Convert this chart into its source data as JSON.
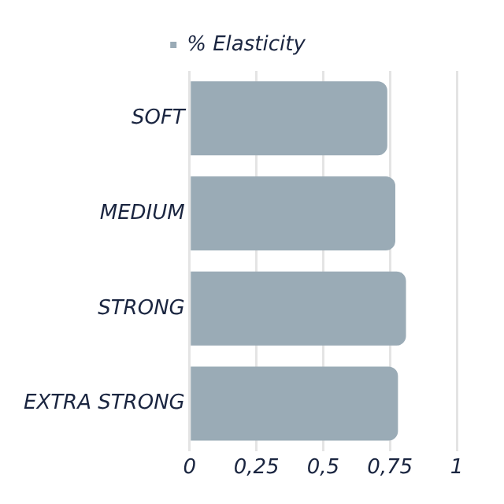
{
  "chart_data": {
    "type": "bar",
    "orientation": "horizontal",
    "categories": [
      "SOFT",
      "MEDIUM",
      "STRONG",
      "EXTRA STRONG"
    ],
    "series": [
      {
        "name": "% Elasticity",
        "color": "#9aabb6",
        "values": [
          0.74,
          0.77,
          0.81,
          0.78
        ]
      }
    ],
    "xlim": [
      0,
      1
    ],
    "xticks": [
      0,
      {
        "value": 0.25,
        "label": "0,25"
      },
      {
        "value": 0.5,
        "label": "0,5"
      },
      {
        "value": 0.75,
        "label": "0,75"
      },
      1
    ],
    "grid": "x",
    "legend": "top"
  }
}
